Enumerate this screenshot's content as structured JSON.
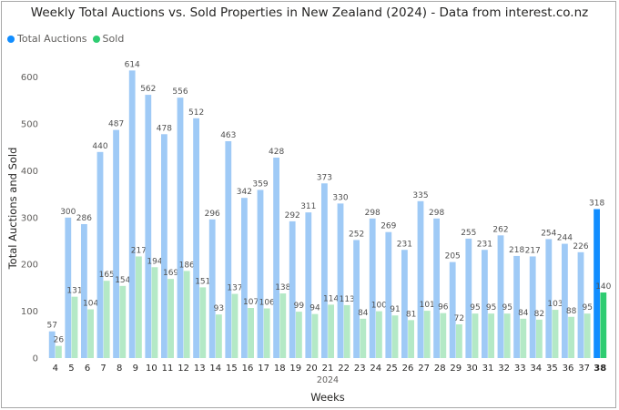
{
  "chart_data": {
    "type": "bar",
    "title": "Weekly Total Auctions vs. Sold Properties in New Zealand (2024) - Data from interest.co.nz",
    "xlabel": "Weeks",
    "x_sublabel": "2024",
    "ylabel": "Total Auctions and Sold",
    "ylim": [
      0,
      640
    ],
    "yticks": [
      0,
      100,
      200,
      300,
      400,
      500,
      600
    ],
    "grid": false,
    "legend_position": "top-left",
    "categories": [
      "4",
      "5",
      "6",
      "7",
      "8",
      "9",
      "10",
      "11",
      "12",
      "13",
      "14",
      "15",
      "16",
      "17",
      "18",
      "19",
      "20",
      "21",
      "22",
      "23",
      "24",
      "25",
      "26",
      "27",
      "28",
      "29",
      "30",
      "31",
      "32",
      "33",
      "34",
      "35",
      "36",
      "37",
      "38"
    ],
    "highlighted_category": "38",
    "series": [
      {
        "name": "Total Auctions",
        "color": "#9fcaf6",
        "highlight_color": "#118dff",
        "values": [
          57,
          300,
          286,
          440,
          487,
          614,
          562,
          478,
          556,
          512,
          296,
          463,
          342,
          359,
          428,
          292,
          311,
          373,
          330,
          252,
          298,
          269,
          231,
          335,
          298,
          205,
          255,
          231,
          262,
          218,
          217,
          254,
          244,
          226,
          318
        ]
      },
      {
        "name": "Sold",
        "color": "#b4e9c6",
        "highlight_color": "#2ecc71",
        "values": [
          26,
          131,
          104,
          165,
          154,
          217,
          194,
          169,
          186,
          151,
          93,
          137,
          107,
          106,
          138,
          99,
          94,
          114,
          113,
          84,
          100,
          91,
          81,
          101,
          96,
          72,
          95,
          95,
          95,
          84,
          82,
          103,
          88,
          95,
          140
        ]
      }
    ]
  }
}
